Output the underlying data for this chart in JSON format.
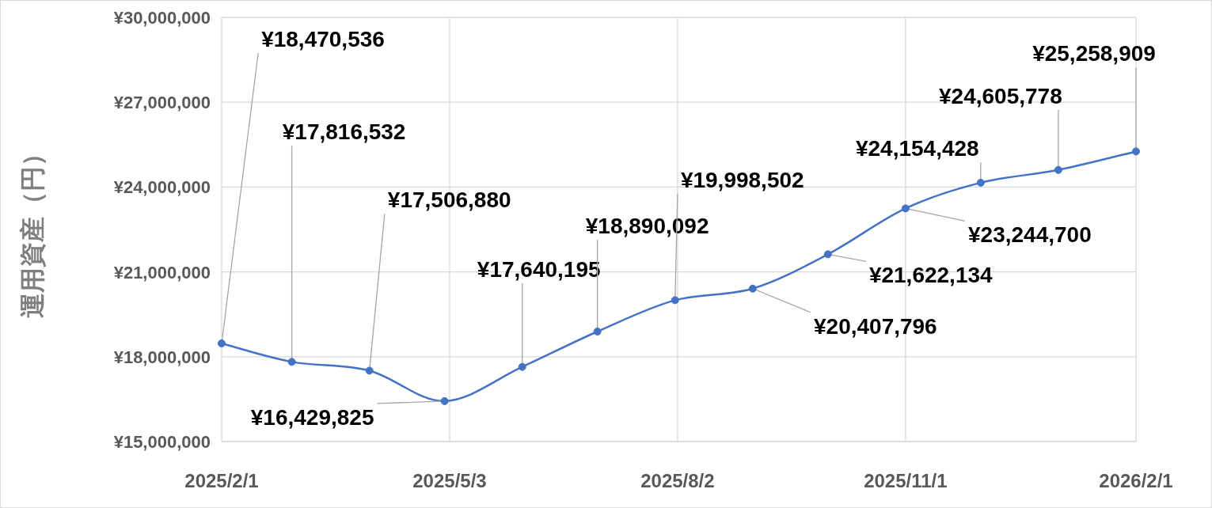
{
  "chart_data": {
    "type": "line",
    "ylabel": "運用資産（円）",
    "x": [
      "2025-02-01",
      "2025-03-01",
      "2025-04-01",
      "2025-05-01",
      "2025-06-01",
      "2025-07-01",
      "2025-08-01",
      "2025-09-01",
      "2025-10-01",
      "2025-11-01",
      "2025-12-01",
      "2026-01-01",
      "2026-02-01"
    ],
    "series": [
      {
        "color": "#4472c4",
        "values": [
          18470536,
          17816532,
          17506880,
          16429825,
          17640195,
          18890092,
          19998502,
          20407796,
          21622134,
          23244700,
          24154428,
          24605778,
          25258909
        ],
        "value_labels": [
          "¥18,470,536",
          "¥17,816,532",
          "¥17,506,880",
          "¥16,429,825",
          "¥17,640,195",
          "¥18,890,092",
          "¥19,998,502",
          "¥20,407,796",
          "¥21,622,134",
          "¥23,244,700",
          "¥24,154,428",
          "¥24,605,778",
          "¥25,258,909"
        ]
      }
    ],
    "xlim": [
      "2025-02-01",
      "2026-02-01"
    ],
    "xticks": [
      {
        "value": "2025-02-01",
        "label": "2025/2/1"
      },
      {
        "value": "2025-05-03",
        "label": "2025/5/3"
      },
      {
        "value": "2025-08-02",
        "label": "2025/8/2"
      },
      {
        "value": "2025-11-01",
        "label": "2025/11/1"
      },
      {
        "value": "2026-02-01",
        "label": "2026/2/1"
      }
    ],
    "ylim": [
      15000000,
      30000000
    ],
    "yticks": [
      {
        "value": 15000000,
        "label": "¥15,000,000"
      },
      {
        "value": 18000000,
        "label": "¥18,000,000"
      },
      {
        "value": 21000000,
        "label": "¥21,000,000"
      },
      {
        "value": 24000000,
        "label": "¥24,000,000"
      },
      {
        "value": 27000000,
        "label": "¥27,000,000"
      },
      {
        "value": 30000000,
        "label": "¥30,000,000"
      }
    ],
    "grid": true,
    "marker": "circle",
    "line_style": "solid"
  }
}
